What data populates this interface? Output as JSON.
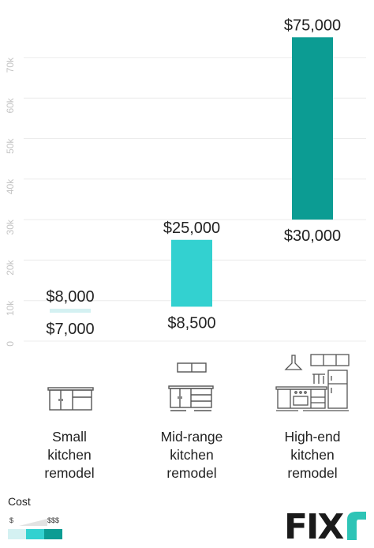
{
  "chart_data": {
    "type": "range-bar",
    "yaxis": {
      "min": 0,
      "max": 75000,
      "ticks": [
        0,
        10000,
        20000,
        30000,
        40000,
        50000,
        60000,
        70000
      ],
      "tick_labels": [
        "0",
        "10k",
        "20k",
        "30k",
        "40k",
        "50k",
        "60k",
        "70k"
      ]
    },
    "grid": true,
    "bars": [
      {
        "category": [
          "Small",
          "kitchen",
          "remodel"
        ],
        "low": 7000,
        "high": 8000,
        "low_label": "$7,000",
        "high_label": "$8,000",
        "color": "#d4f1f2"
      },
      {
        "category": [
          "Mid-range",
          "kitchen",
          "remodel"
        ],
        "low": 8500,
        "high": 25000,
        "low_label": "$8,500",
        "high_label": "$25,000",
        "color": "#33d1d0"
      },
      {
        "category": [
          "High-end",
          "kitchen",
          "remodel"
        ],
        "low": 30000,
        "high": 75000,
        "low_label": "$30,000",
        "high_label": "$75,000",
        "color": "#0c9c93"
      }
    ]
  },
  "legend": {
    "title": "Cost",
    "low_label": "$",
    "high_label": "$$$",
    "colors": [
      "#d4f1f2",
      "#33d1d0",
      "#0c9c93"
    ]
  },
  "icons": [
    "small-kitchen-icon",
    "mid-range-kitchen-icon",
    "high-end-kitchen-icon"
  ],
  "brand": {
    "name": "FIXR",
    "color": "#1a1a1a",
    "accent": "#2ec4b6"
  }
}
